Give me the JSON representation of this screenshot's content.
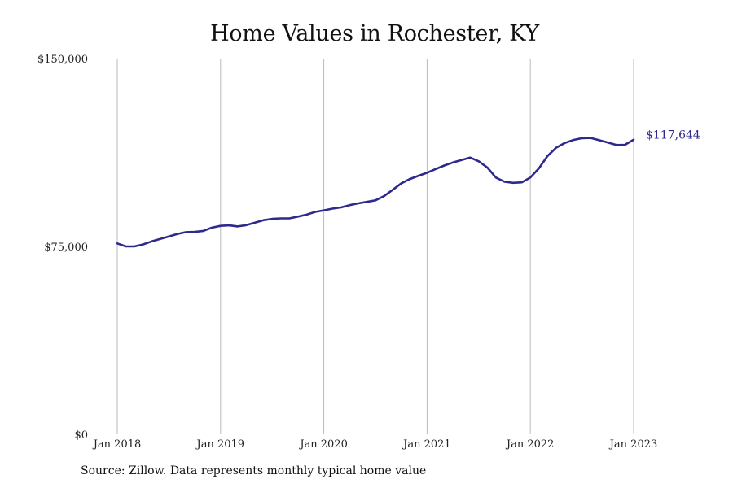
{
  "chart_data": {
    "type": "line",
    "title": "Home Values in Rochester, KY",
    "xlabel": "",
    "ylabel": "",
    "ylim": [
      0,
      150000
    ],
    "xlim": [
      "2018-01",
      "2023-01"
    ],
    "grid": "vertical",
    "line_color": "#2e2a8c",
    "grid_color": "#bbbbbb",
    "y_ticks": [
      {
        "value": 0,
        "label": "$0"
      },
      {
        "value": 75000,
        "label": "$75,000"
      },
      {
        "value": 150000,
        "label": "$150,000"
      }
    ],
    "x_ticks": [
      {
        "value": "2018-01",
        "label": "Jan 2018"
      },
      {
        "value": "2019-01",
        "label": "Jan 2019"
      },
      {
        "value": "2020-01",
        "label": "Jan 2020"
      },
      {
        "value": "2021-01",
        "label": "Jan 2021"
      },
      {
        "value": "2022-01",
        "label": "Jan 2022"
      },
      {
        "value": "2023-01",
        "label": "Jan 2023"
      }
    ],
    "series": [
      {
        "end_label": "$117,644",
        "x": [
          "2018-01",
          "2018-02",
          "2018-03",
          "2018-04",
          "2018-05",
          "2018-06",
          "2018-07",
          "2018-08",
          "2018-09",
          "2018-10",
          "2018-11",
          "2018-12",
          "2019-01",
          "2019-02",
          "2019-03",
          "2019-04",
          "2019-05",
          "2019-06",
          "2019-07",
          "2019-08",
          "2019-09",
          "2019-10",
          "2019-11",
          "2019-12",
          "2020-01",
          "2020-02",
          "2020-03",
          "2020-04",
          "2020-05",
          "2020-06",
          "2020-07",
          "2020-08",
          "2020-09",
          "2020-10",
          "2020-11",
          "2020-12",
          "2021-01",
          "2021-02",
          "2021-03",
          "2021-04",
          "2021-05",
          "2021-06",
          "2021-07",
          "2021-08",
          "2021-09",
          "2021-10",
          "2021-11",
          "2021-12",
          "2022-01",
          "2022-02",
          "2022-03",
          "2022-04",
          "2022-05",
          "2022-06",
          "2022-07",
          "2022-08",
          "2022-09",
          "2022-10",
          "2022-11",
          "2022-12",
          "2023-01"
        ],
        "values": [
          76200,
          75000,
          75000,
          75800,
          77000,
          78000,
          79000,
          80000,
          80700,
          80800,
          81200,
          82500,
          83200,
          83400,
          83000,
          83500,
          84500,
          85500,
          86000,
          86200,
          86200,
          86900,
          87700,
          88800,
          89400,
          90100,
          90600,
          91500,
          92200,
          92800,
          93400,
          95100,
          97600,
          100200,
          101900,
          103200,
          104400,
          105900,
          107300,
          108500,
          109500,
          110500,
          109000,
          106500,
          102500,
          100800,
          100400,
          100600,
          102500,
          106200,
          111100,
          114400,
          116300,
          117500,
          118200,
          118300,
          117400,
          116500,
          115500,
          115600,
          117644
        ]
      }
    ]
  },
  "source_note": "Source: Zillow. Data represents monthly typical home value"
}
